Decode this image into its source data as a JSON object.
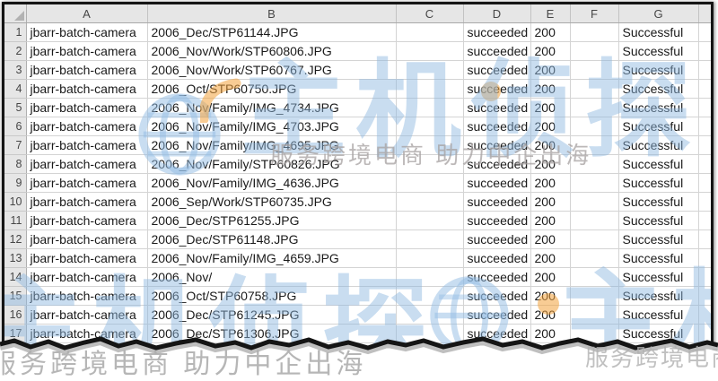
{
  "sheet": {
    "corner_label": "",
    "column_headers": [
      "A",
      "B",
      "C",
      "D",
      "E",
      "F",
      "G",
      ""
    ],
    "rows": [
      {
        "num": "1",
        "A": "jbarr-batch-camera",
        "B": "2006_Dec/STP61144.JPG",
        "C": "",
        "D": "succeeded",
        "E": "200",
        "F": "",
        "G": "Successful",
        "H": ""
      },
      {
        "num": "2",
        "A": "jbarr-batch-camera",
        "B": "2006_Nov/Work/STP60806.JPG",
        "C": "",
        "D": "succeeded",
        "E": "200",
        "F": "",
        "G": "Successful",
        "H": ""
      },
      {
        "num": "3",
        "A": "jbarr-batch-camera",
        "B": "2006_Nov/Work/STP60767.JPG",
        "C": "",
        "D": "succeeded",
        "E": "200",
        "F": "",
        "G": "Successful",
        "H": ""
      },
      {
        "num": "4",
        "A": "jbarr-batch-camera",
        "B": "2006_Oct/STP60750.JPG",
        "C": "",
        "D": "succeeded",
        "E": "200",
        "F": "",
        "G": "Successful",
        "H": ""
      },
      {
        "num": "5",
        "A": "jbarr-batch-camera",
        "B": "2006_Nov/Family/IMG_4734.JPG",
        "C": "",
        "D": "succeeded",
        "E": "200",
        "F": "",
        "G": "Successful",
        "H": ""
      },
      {
        "num": "6",
        "A": "jbarr-batch-camera",
        "B": "2006_Nov/Family/IMG_4703.JPG",
        "C": "",
        "D": "succeeded",
        "E": "200",
        "F": "",
        "G": "Successful",
        "H": ""
      },
      {
        "num": "7",
        "A": "jbarr-batch-camera",
        "B": "2006_Nov/Family/IMG_4695.JPG",
        "C": "",
        "D": "succeeded",
        "E": "200",
        "F": "",
        "G": "Successful",
        "H": ""
      },
      {
        "num": "8",
        "A": "jbarr-batch-camera",
        "B": "2006_Nov/Family/STP60826.JPG",
        "C": "",
        "D": "succeeded",
        "E": "200",
        "F": "",
        "G": "Successful",
        "H": ""
      },
      {
        "num": "9",
        "A": "jbarr-batch-camera",
        "B": "2006_Nov/Family/IMG_4636.JPG",
        "C": "",
        "D": "succeeded",
        "E": "200",
        "F": "",
        "G": "Successful",
        "H": ""
      },
      {
        "num": "10",
        "A": "jbarr-batch-camera",
        "B": "2006_Sep/Work/STP60735.JPG",
        "C": "",
        "D": "succeeded",
        "E": "200",
        "F": "",
        "G": "Successful",
        "H": ""
      },
      {
        "num": "11",
        "A": "jbarr-batch-camera",
        "B": "2006_Dec/STP61255.JPG",
        "C": "",
        "D": "succeeded",
        "E": "200",
        "F": "",
        "G": "Successful",
        "H": ""
      },
      {
        "num": "12",
        "A": "jbarr-batch-camera",
        "B": "2006_Dec/STP61148.JPG",
        "C": "",
        "D": "succeeded",
        "E": "200",
        "F": "",
        "G": "Successful",
        "H": ""
      },
      {
        "num": "13",
        "A": "jbarr-batch-camera",
        "B": "2006_Nov/Family/IMG_4659.JPG",
        "C": "",
        "D": "succeeded",
        "E": "200",
        "F": "",
        "G": "Successful",
        "H": ""
      },
      {
        "num": "14",
        "A": "jbarr-batch-camera",
        "B": "2006_Nov/",
        "C": "",
        "D": "succeeded",
        "E": "200",
        "F": "",
        "G": "Successful",
        "H": ""
      },
      {
        "num": "15",
        "A": "jbarr-batch-camera",
        "B": "2006_Oct/STP60758.JPG",
        "C": "",
        "D": "succeeded",
        "E": "200",
        "F": "",
        "G": "Successful",
        "H": ""
      },
      {
        "num": "16",
        "A": "jbarr-batch-camera",
        "B": "2006_Dec/STP61245.JPG",
        "C": "",
        "D": "succeeded",
        "E": "200",
        "F": "",
        "G": "Successful",
        "H": ""
      },
      {
        "num": "17",
        "A": "jbarr-batch-camera",
        "B": "2006_Dec/STP61306.JPG",
        "C": "",
        "D": "succeeded",
        "E": "200",
        "F": "",
        "G": "Successful",
        "H": ""
      }
    ]
  },
  "watermark": {
    "logo_text": "主机侦探",
    "slogan": "服务跨境电商 助力中企出海",
    "bottom_left_text": "服务跨境电商 助力中企出海",
    "bottom_right_text": "服务跨境电商",
    "colors": {
      "blue": "#8eb8e0",
      "orange": "#f2a33c",
      "gray": "#b0b0b0"
    }
  },
  "colors": {
    "frame": "#151515",
    "header_bg": "#e6e6e6",
    "grid_line": "#d4d4d4",
    "cell_text": "#1a1a1a",
    "header_text": "#474747"
  }
}
